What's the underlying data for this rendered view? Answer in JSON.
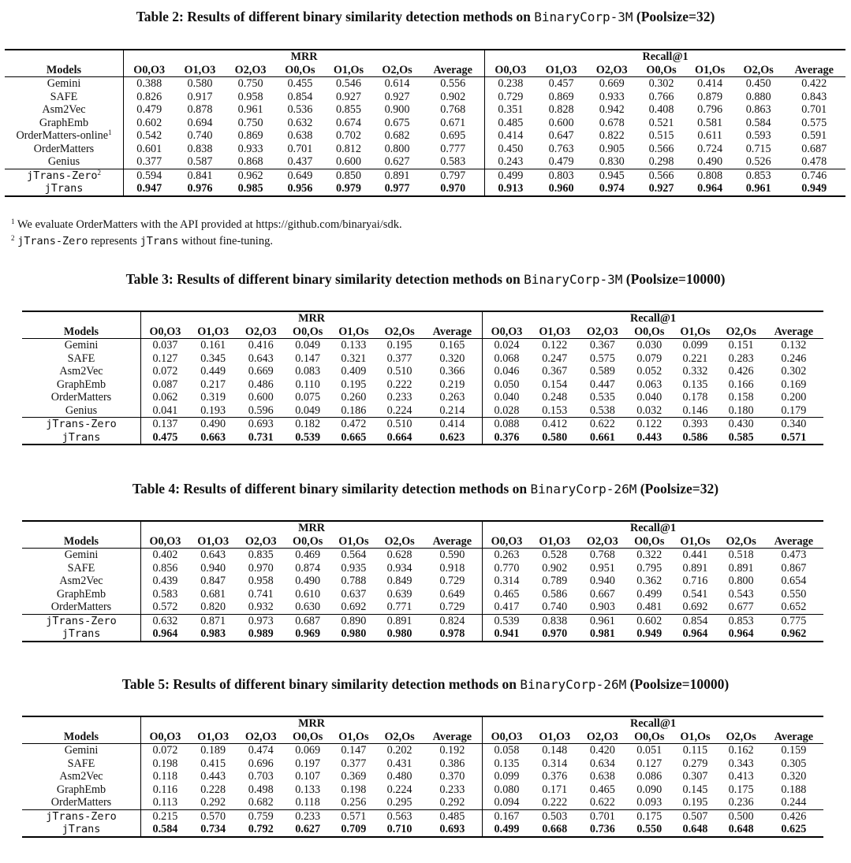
{
  "tables": [
    {
      "caption_pre": "Table 2: Results of different binary similarity detection methods on ",
      "caption_dataset": "BinaryCorp-3M",
      "caption_post": " (Poolsize=32)",
      "group_mrr": "MRR",
      "group_recall": "Recall@1",
      "models_label": "Models",
      "columns": [
        "O0,O3",
        "O1,O3",
        "O2,O3",
        "O0,Os",
        "O1,Os",
        "O2,Os",
        "Average"
      ],
      "rows": [
        {
          "model": "Gemini",
          "sup": "",
          "mrr": [
            "0.388",
            "0.580",
            "0.750",
            "0.455",
            "0.546",
            "0.614",
            "0.556"
          ],
          "recall": [
            "0.238",
            "0.457",
            "0.669",
            "0.302",
            "0.414",
            "0.450",
            "0.422"
          ]
        },
        {
          "model": "SAFE",
          "sup": "",
          "mrr": [
            "0.826",
            "0.917",
            "0.958",
            "0.854",
            "0.927",
            "0.927",
            "0.902"
          ],
          "recall": [
            "0.729",
            "0.869",
            "0.933",
            "0.766",
            "0.879",
            "0.880",
            "0.843"
          ]
        },
        {
          "model": "Asm2Vec",
          "sup": "",
          "mrr": [
            "0.479",
            "0.878",
            "0.961",
            "0.536",
            "0.855",
            "0.900",
            "0.768"
          ],
          "recall": [
            "0.351",
            "0.828",
            "0.942",
            "0.408",
            "0.796",
            "0.863",
            "0.701"
          ]
        },
        {
          "model": "GraphEmb",
          "sup": "",
          "mrr": [
            "0.602",
            "0.694",
            "0.750",
            "0.632",
            "0.674",
            "0.675",
            "0.671"
          ],
          "recall": [
            "0.485",
            "0.600",
            "0.678",
            "0.521",
            "0.581",
            "0.584",
            "0.575"
          ]
        },
        {
          "model": "OrderMatters-online",
          "sup": "1",
          "mrr": [
            "0.542",
            "0.740",
            "0.869",
            "0.638",
            "0.702",
            "0.682",
            "0.695"
          ],
          "recall": [
            "0.414",
            "0.647",
            "0.822",
            "0.515",
            "0.611",
            "0.593",
            "0.591"
          ]
        },
        {
          "model": "OrderMatters",
          "sup": "",
          "mrr": [
            "0.601",
            "0.838",
            "0.933",
            "0.701",
            "0.812",
            "0.800",
            "0.777"
          ],
          "recall": [
            "0.450",
            "0.763",
            "0.905",
            "0.566",
            "0.724",
            "0.715",
            "0.687"
          ]
        },
        {
          "model": "Genius",
          "sup": "",
          "mrr": [
            "0.377",
            "0.587",
            "0.868",
            "0.437",
            "0.600",
            "0.627",
            "0.583"
          ],
          "recall": [
            "0.243",
            "0.479",
            "0.830",
            "0.298",
            "0.490",
            "0.526",
            "0.478"
          ]
        },
        {
          "model": "jTrans-Zero",
          "sup": "2",
          "mrr": [
            "0.594",
            "0.841",
            "0.962",
            "0.649",
            "0.850",
            "0.891",
            "0.797"
          ],
          "recall": [
            "0.499",
            "0.803",
            "0.945",
            "0.566",
            "0.808",
            "0.853",
            "0.746"
          ]
        },
        {
          "model": "jTrans",
          "sup": "",
          "mrr": [
            "0.947",
            "0.976",
            "0.985",
            "0.956",
            "0.979",
            "0.977",
            "0.970"
          ],
          "recall": [
            "0.913",
            "0.960",
            "0.974",
            "0.927",
            "0.964",
            "0.961",
            "0.949"
          ]
        }
      ],
      "footnote_1": "We evaluate OrderMatters with the API provided at https://github.com/binaryai/sdk.",
      "footnote_2_code": "jTrans-Zero",
      "footnote_2_mid": " represents ",
      "footnote_2_code2": "jTrans",
      "footnote_2_post": " without fine-tuning."
    },
    {
      "caption_pre": "Table 3: Results of different binary similarity detection methods on ",
      "caption_dataset": "BinaryCorp-3M",
      "caption_post": " (Poolsize=10000)",
      "group_mrr": "MRR",
      "group_recall": "Recall@1",
      "models_label": "Models",
      "columns": [
        "O0,O3",
        "O1,O3",
        "O2,O3",
        "O0,Os",
        "O1,Os",
        "O2,Os",
        "Average"
      ],
      "rows": [
        {
          "model": "Gemini",
          "mrr": [
            "0.037",
            "0.161",
            "0.416",
            "0.049",
            "0.133",
            "0.195",
            "0.165"
          ],
          "recall": [
            "0.024",
            "0.122",
            "0.367",
            "0.030",
            "0.099",
            "0.151",
            "0.132"
          ]
        },
        {
          "model": "SAFE",
          "mrr": [
            "0.127",
            "0.345",
            "0.643",
            "0.147",
            "0.321",
            "0.377",
            "0.320"
          ],
          "recall": [
            "0.068",
            "0.247",
            "0.575",
            "0.079",
            "0.221",
            "0.283",
            "0.246"
          ]
        },
        {
          "model": "Asm2Vec",
          "mrr": [
            "0.072",
            "0.449",
            "0.669",
            "0.083",
            "0.409",
            "0.510",
            "0.366"
          ],
          "recall": [
            "0.046",
            "0.367",
            "0.589",
            "0.052",
            "0.332",
            "0.426",
            "0.302"
          ]
        },
        {
          "model": "GraphEmb",
          "mrr": [
            "0.087",
            "0.217",
            "0.486",
            "0.110",
            "0.195",
            "0.222",
            "0.219"
          ],
          "recall": [
            "0.050",
            "0.154",
            "0.447",
            "0.063",
            "0.135",
            "0.166",
            "0.169"
          ]
        },
        {
          "model": "OrderMatters",
          "mrr": [
            "0.062",
            "0.319",
            "0.600",
            "0.075",
            "0.260",
            "0.233",
            "0.263"
          ],
          "recall": [
            "0.040",
            "0.248",
            "0.535",
            "0.040",
            "0.178",
            "0.158",
            "0.200"
          ]
        },
        {
          "model": "Genius",
          "mrr": [
            "0.041",
            "0.193",
            "0.596",
            "0.049",
            "0.186",
            "0.224",
            "0.214"
          ],
          "recall": [
            "0.028",
            "0.153",
            "0.538",
            "0.032",
            "0.146",
            "0.180",
            "0.179"
          ]
        },
        {
          "model": "jTrans-Zero",
          "mrr": [
            "0.137",
            "0.490",
            "0.693",
            "0.182",
            "0.472",
            "0.510",
            "0.414"
          ],
          "recall": [
            "0.088",
            "0.412",
            "0.622",
            "0.122",
            "0.393",
            "0.430",
            "0.340"
          ]
        },
        {
          "model": "jTrans",
          "mrr": [
            "0.475",
            "0.663",
            "0.731",
            "0.539",
            "0.665",
            "0.664",
            "0.623"
          ],
          "recall": [
            "0.376",
            "0.580",
            "0.661",
            "0.443",
            "0.586",
            "0.585",
            "0.571"
          ]
        }
      ]
    },
    {
      "caption_pre": "Table 4: Results of different binary similarity detection methods on ",
      "caption_dataset": "BinaryCorp-26M",
      "caption_post": " (Poolsize=32)",
      "group_mrr": "MRR",
      "group_recall": "Recall@1",
      "models_label": "Models",
      "columns": [
        "O0,O3",
        "O1,O3",
        "O2,O3",
        "O0,Os",
        "O1,Os",
        "O2,Os",
        "Average"
      ],
      "rows": [
        {
          "model": "Gemini",
          "mrr": [
            "0.402",
            "0.643",
            "0.835",
            "0.469",
            "0.564",
            "0.628",
            "0.590"
          ],
          "recall": [
            "0.263",
            "0.528",
            "0.768",
            "0.322",
            "0.441",
            "0.518",
            "0.473"
          ]
        },
        {
          "model": "SAFE",
          "mrr": [
            "0.856",
            "0.940",
            "0.970",
            "0.874",
            "0.935",
            "0.934",
            "0.918"
          ],
          "recall": [
            "0.770",
            "0.902",
            "0.951",
            "0.795",
            "0.891",
            "0.891",
            "0.867"
          ]
        },
        {
          "model": "Asm2Vec",
          "mrr": [
            "0.439",
            "0.847",
            "0.958",
            "0.490",
            "0.788",
            "0.849",
            "0.729"
          ],
          "recall": [
            "0.314",
            "0.789",
            "0.940",
            "0.362",
            "0.716",
            "0.800",
            "0.654"
          ]
        },
        {
          "model": "GraphEmb",
          "mrr": [
            "0.583",
            "0.681",
            "0.741",
            "0.610",
            "0.637",
            "0.639",
            "0.649"
          ],
          "recall": [
            "0.465",
            "0.586",
            "0.667",
            "0.499",
            "0.541",
            "0.543",
            "0.550"
          ]
        },
        {
          "model": "OrderMatters",
          "mrr": [
            "0.572",
            "0.820",
            "0.932",
            "0.630",
            "0.692",
            "0.771",
            "0.729"
          ],
          "recall": [
            "0.417",
            "0.740",
            "0.903",
            "0.481",
            "0.692",
            "0.677",
            "0.652"
          ]
        },
        {
          "model": "jTrans-Zero",
          "mrr": [
            "0.632",
            "0.871",
            "0.973",
            "0.687",
            "0.890",
            "0.891",
            "0.824"
          ],
          "recall": [
            "0.539",
            "0.838",
            "0.961",
            "0.602",
            "0.854",
            "0.853",
            "0.775"
          ]
        },
        {
          "model": "jTrans",
          "mrr": [
            "0.964",
            "0.983",
            "0.989",
            "0.969",
            "0.980",
            "0.980",
            "0.978"
          ],
          "recall": [
            "0.941",
            "0.970",
            "0.981",
            "0.949",
            "0.964",
            "0.964",
            "0.962"
          ]
        }
      ]
    },
    {
      "caption_pre": "Table 5: Results of different binary similarity detection methods on ",
      "caption_dataset": "BinaryCorp-26M",
      "caption_post": " (Poolsize=10000)",
      "group_mrr": "MRR",
      "group_recall": "Recall@1",
      "models_label": "Models",
      "columns": [
        "O0,O3",
        "O1,O3",
        "O2,O3",
        "O0,Os",
        "O1,Os",
        "O2,Os",
        "Average"
      ],
      "rows": [
        {
          "model": "Gemini",
          "mrr": [
            "0.072",
            "0.189",
            "0.474",
            "0.069",
            "0.147",
            "0.202",
            "0.192"
          ],
          "recall": [
            "0.058",
            "0.148",
            "0.420",
            "0.051",
            "0.115",
            "0.162",
            "0.159"
          ]
        },
        {
          "model": "SAFE",
          "mrr": [
            "0.198",
            "0.415",
            "0.696",
            "0.197",
            "0.377",
            "0.431",
            "0.386"
          ],
          "recall": [
            "0.135",
            "0.314",
            "0.634",
            "0.127",
            "0.279",
            "0.343",
            "0.305"
          ]
        },
        {
          "model": "Asm2Vec",
          "mrr": [
            "0.118",
            "0.443",
            "0.703",
            "0.107",
            "0.369",
            "0.480",
            "0.370"
          ],
          "recall": [
            "0.099",
            "0.376",
            "0.638",
            "0.086",
            "0.307",
            "0.413",
            "0.320"
          ]
        },
        {
          "model": "GraphEmb",
          "mrr": [
            "0.116",
            "0.228",
            "0.498",
            "0.133",
            "0.198",
            "0.224",
            "0.233"
          ],
          "recall": [
            "0.080",
            "0.171",
            "0.465",
            "0.090",
            "0.145",
            "0.175",
            "0.188"
          ]
        },
        {
          "model": "OrderMatters",
          "mrr": [
            "0.113",
            "0.292",
            "0.682",
            "0.118",
            "0.256",
            "0.295",
            "0.292"
          ],
          "recall": [
            "0.094",
            "0.222",
            "0.622",
            "0.093",
            "0.195",
            "0.236",
            "0.244"
          ]
        },
        {
          "model": "jTrans-Zero",
          "mrr": [
            "0.215",
            "0.570",
            "0.759",
            "0.233",
            "0.571",
            "0.563",
            "0.485"
          ],
          "recall": [
            "0.167",
            "0.503",
            "0.701",
            "0.175",
            "0.507",
            "0.500",
            "0.426"
          ]
        },
        {
          "model": "jTrans",
          "mrr": [
            "0.584",
            "0.734",
            "0.792",
            "0.627",
            "0.709",
            "0.710",
            "0.693"
          ],
          "recall": [
            "0.499",
            "0.668",
            "0.736",
            "0.550",
            "0.648",
            "0.648",
            "0.625"
          ]
        }
      ]
    }
  ]
}
